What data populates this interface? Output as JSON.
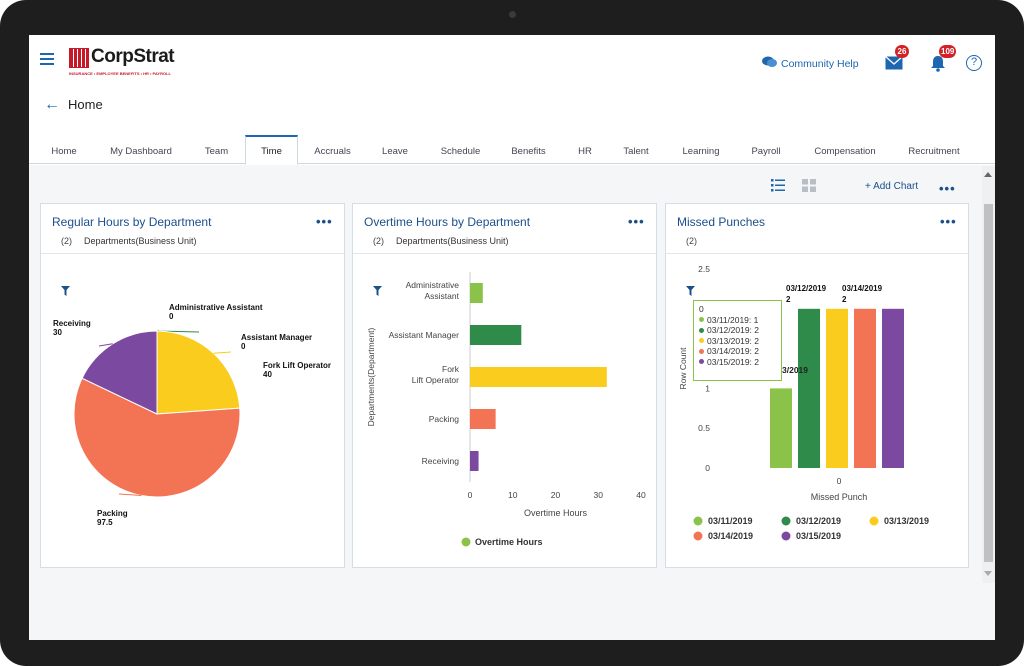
{
  "header": {
    "logo_text": "CorpStrat",
    "logo_tagline": "INSURANCE • EMPLOYEE BENEFITS • HR • PAYROLL",
    "community_help": "Community Help",
    "messages_badge": "26",
    "notifications_badge": "109",
    "help_glyph": "?"
  },
  "breadcrumb": {
    "title": "Home"
  },
  "tabs": [
    "Home",
    "My Dashboard",
    "Team",
    "Time",
    "Accruals",
    "Leave",
    "Schedule",
    "Benefits",
    "HR",
    "Talent",
    "Learning",
    "Payroll",
    "Compensation",
    "Recruitment"
  ],
  "active_tab": "Time",
  "toolbar": {
    "add_chart": "+ Add Chart",
    "more": "•••"
  },
  "cards": {
    "regular": {
      "title": "Regular Hours by Department",
      "filter_count": "(2)",
      "filter_label": "Departments(Business Unit)",
      "more": "•••"
    },
    "overtime": {
      "title": "Overtime Hours by Department",
      "filter_count": "(2)",
      "filter_label": "Departments(Business Unit)",
      "more": "•••"
    },
    "missed": {
      "title": "Missed Punches",
      "filter_count": "(2)",
      "more": "•••"
    }
  },
  "tooltip": {
    "header": "0",
    "rows": [
      "03/11/2019: 1",
      "03/12/2019: 2",
      "03/13/2019: 2",
      "03/14/2019: 2",
      "03/15/2019: 2"
    ],
    "peek": "3/2019"
  },
  "colors": {
    "accent": "#1d66b0",
    "green_light": "#8bc34a",
    "green_dark": "#2e8b4a",
    "yellow": "#f9cc1d",
    "coral": "#f37355",
    "purple": "#7b4aa0"
  },
  "chart_data": [
    {
      "type": "pie",
      "title": "Regular Hours by Department",
      "slices": [
        {
          "label": "Administrative Assistant",
          "value": 0,
          "color": "#8bc34a"
        },
        {
          "label": "Assistant Manager",
          "value": 0,
          "color": "#2e8b4a"
        },
        {
          "label": "Fork Lift Operator",
          "value": 40,
          "color": "#f9cc1d"
        },
        {
          "label": "Packing",
          "value": 97.5,
          "color": "#f37355"
        },
        {
          "label": "Receiving",
          "value": 30,
          "color": "#7b4aa0"
        }
      ]
    },
    {
      "type": "bar",
      "orientation": "horizontal",
      "title": "Overtime Hours by Department",
      "categories": [
        "Administrative Assistant",
        "Assistant Manager",
        "Fork Lift Operator",
        "Packing",
        "Receiving"
      ],
      "values": [
        3,
        12,
        32,
        6,
        2
      ],
      "colors": [
        "#8bc34a",
        "#2e8b4a",
        "#f9cc1d",
        "#f37355",
        "#7b4aa0"
      ],
      "xlabel": "Overtime Hours",
      "ylabel": "Departments(Department)",
      "xlim": [
        0,
        40
      ],
      "xticks": [
        "0",
        "10",
        "20",
        "30",
        "40"
      ],
      "legend": [
        {
          "label": "Overtime Hours",
          "color": "#8bc34a"
        }
      ]
    },
    {
      "type": "bar",
      "title": "Missed Punches",
      "categories": [
        "Missed Punch"
      ],
      "xticks": [
        "0"
      ],
      "series": [
        {
          "name": "03/11/2019",
          "values": [
            1
          ],
          "color": "#8bc34a"
        },
        {
          "name": "03/12/2019",
          "values": [
            2
          ],
          "color": "#2e8b4a"
        },
        {
          "name": "03/13/2019",
          "values": [
            2
          ],
          "color": "#f9cc1d"
        },
        {
          "name": "03/14/2019",
          "values": [
            2
          ],
          "color": "#f37355"
        },
        {
          "name": "03/15/2019",
          "values": [
            2
          ],
          "color": "#7b4aa0"
        }
      ],
      "data_labels": [
        {
          "date": "03/12/2019",
          "value": "2"
        },
        {
          "date": "03/14/2019",
          "value": "2"
        }
      ],
      "ylabel": "Row Count",
      "xlabel": "Missed Punch",
      "ylim": [
        0,
        2.5
      ],
      "yticks": [
        "0",
        "0.5",
        "1",
        "1.5",
        "2",
        "2.5"
      ],
      "legend_position": "bottom"
    }
  ]
}
